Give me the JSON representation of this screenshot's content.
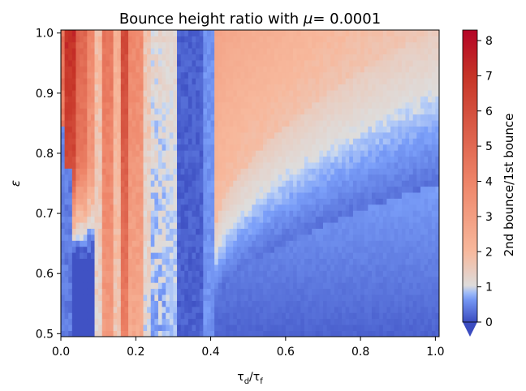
{
  "chart_data": {
    "type": "heatmap",
    "title_text": "Bounce height ratio with ",
    "title_symbol": "μ",
    "title_value": "=  0.0001",
    "xlabel": {
      "base": "τ",
      "sub1": "d",
      "slash": "/",
      "base2": "τ",
      "sub2": "f"
    },
    "ylabel": "ε",
    "x_range": [
      0.0,
      1.01
    ],
    "y_range": [
      0.495,
      1.005
    ],
    "x_ticks": [
      {
        "value": 0.0,
        "label": "0.0"
      },
      {
        "value": 0.2,
        "label": "0.2"
      },
      {
        "value": 0.4,
        "label": "0.4"
      },
      {
        "value": 0.6,
        "label": "0.6"
      },
      {
        "value": 0.8,
        "label": "0.8"
      },
      {
        "value": 1.0,
        "label": "1.0"
      }
    ],
    "y_ticks": [
      {
        "value": 0.5,
        "label": "0.5"
      },
      {
        "value": 0.6,
        "label": "0.6"
      },
      {
        "value": 0.7,
        "label": "0.7"
      },
      {
        "value": 0.8,
        "label": "0.8"
      },
      {
        "value": 0.9,
        "label": "0.9"
      },
      {
        "value": 1.0,
        "label": "1.0"
      }
    ],
    "grid": {
      "nx": 101,
      "ny": 51
    },
    "colorbar": {
      "label": "2nd bounce/1st bounce",
      "range": [
        0,
        8.3
      ],
      "extend": "min",
      "ticks": [
        {
          "value": 0,
          "label": "0"
        },
        {
          "value": 1,
          "label": "1"
        },
        {
          "value": 2,
          "label": "2"
        },
        {
          "value": 3,
          "label": "3"
        },
        {
          "value": 4,
          "label": "4"
        },
        {
          "value": 5,
          "label": "5"
        },
        {
          "value": 6,
          "label": "6"
        },
        {
          "value": 7,
          "label": "7"
        },
        {
          "value": 8,
          "label": "8"
        }
      ],
      "colors": [
        "#3b4cc0",
        "#7b9ff9",
        "#c0d4f5",
        "#dddddd",
        "#f7b89c",
        "#ee8468",
        "#c63427",
        "#b40426"
      ],
      "color_stops": [
        0,
        0.7,
        0.95,
        1,
        2,
        4,
        7,
        8.3
      ],
      "under_color": "#3b4cc0"
    },
    "description_regions": [
      {
        "name": "left-warm-columns",
        "x": [
          0.0,
          0.28
        ],
        "value_range": [
          2,
          8
        ]
      },
      {
        "name": "dark-vertical-band",
        "x": [
          0.31,
          0.37
        ],
        "value_range": [
          0,
          0.5
        ]
      },
      {
        "name": "upper-right-warm-lobe",
        "x": [
          0.4,
          1.0
        ],
        "value_range": [
          1,
          3
        ]
      },
      {
        "name": "lower-right-blue-arcs",
        "x": [
          0.4,
          1.0
        ],
        "value_range": [
          0,
          1.2
        ]
      }
    ]
  }
}
